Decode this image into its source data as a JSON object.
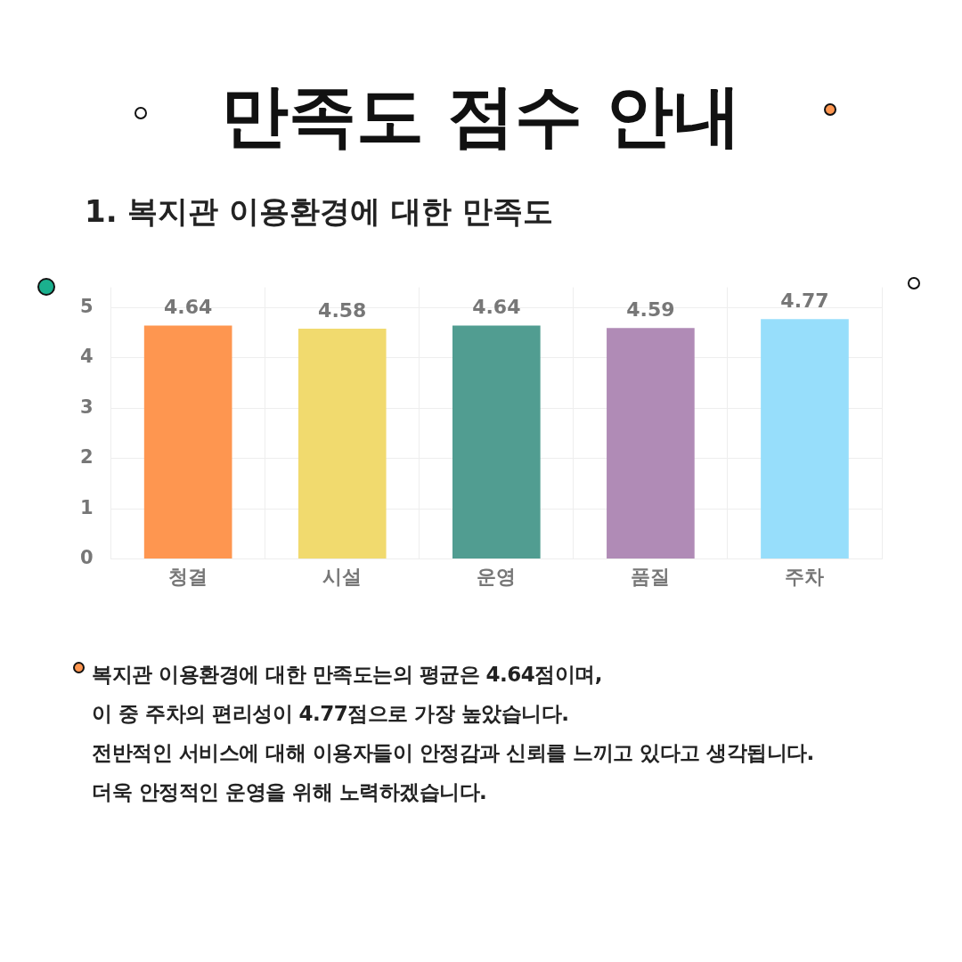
{
  "chart_data": {
    "type": "bar",
    "title": "만족도 점수 안내",
    "subtitle": "1. 복지관 이용환경에 대한 만족도",
    "categories": [
      "청결",
      "시설",
      "운영",
      "품질",
      "주차"
    ],
    "values": [
      4.64,
      4.58,
      4.64,
      4.59,
      4.77
    ],
    "colors": [
      "#fe9650",
      "#f1da6e",
      "#519d91",
      "#b08bb6",
      "#97defb"
    ],
    "ylim": [
      0,
      5.4
    ],
    "yticks": [
      0,
      1,
      2,
      3,
      4,
      5
    ],
    "grid": true,
    "data_labels": true,
    "legend": false,
    "annotations": [
      "복지관 이용환경에 대한 만족도는의 평균은 4.64점이며,\n이 중 주차의 편리성이 4.77점으로 가장 높았습니다.\n전반적인 서비스에 대해 이용자들이 안정감과 신뢰를 느끼고 있다고 생각됩니다.\n더욱 안정적인 운영을 위해 노력하겠습니다."
    ]
  }
}
